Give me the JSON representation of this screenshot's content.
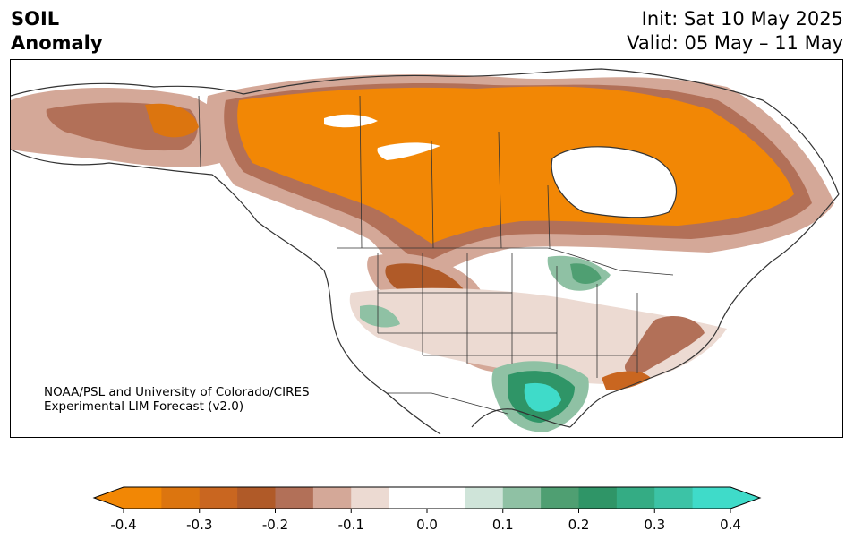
{
  "title": {
    "line1": "SOIL",
    "line2": "Anomaly"
  },
  "header": {
    "init": "Init: Sat 10 May 2025",
    "valid": "Valid: 05 May – 11 May"
  },
  "credit": {
    "line1": "NOAA/PSL and University of Colorado/CIRES",
    "line2": "Experimental LIM Forecast (v2.0)"
  },
  "colorbar": {
    "tick_labels": [
      "-0.4",
      "-0.3",
      "-0.2",
      "-0.1",
      "0.0",
      "0.1",
      "0.2",
      "0.3",
      "0.4"
    ],
    "colors": [
      "#f28705",
      "#dc750f",
      "#c96620",
      "#b05a28",
      "#b27058",
      "#d4a898",
      "#ecdad2",
      "#ffffff",
      "#ffffff",
      "#cfe4d9",
      "#8fc1a4",
      "#4f9f72",
      "#2f9567",
      "#34ac84",
      "#3cc3a6",
      "#3fdbc9"
    ],
    "extend": "both",
    "range": [
      -0.4,
      0.4
    ]
  }
}
